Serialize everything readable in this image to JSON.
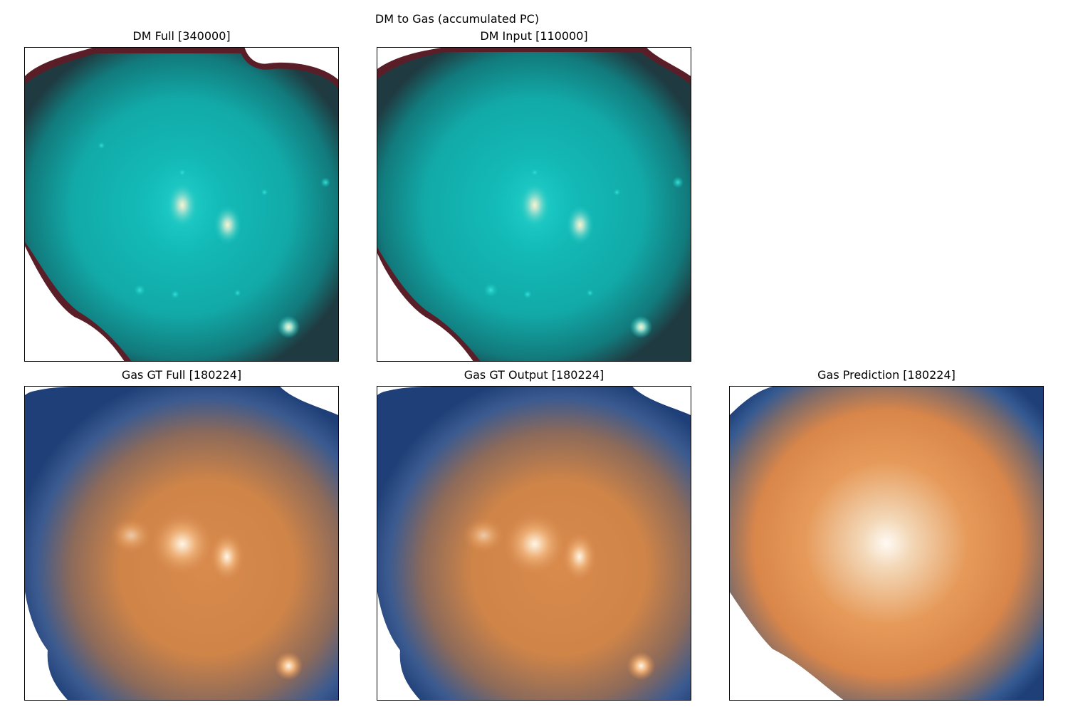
{
  "figure": {
    "suptitle": "DM to Gas (accumulated PC)",
    "panels": [
      {
        "title": "DM Full [340000]",
        "colormap": "teal-maroon"
      },
      {
        "title": "DM Input [110000]",
        "colormap": "teal-maroon"
      },
      {
        "title": "Gas GT Full [180224]",
        "colormap": "blue-orange"
      },
      {
        "title": "Gas GT Output [180224]",
        "colormap": "blue-orange"
      },
      {
        "title": "Gas Prediction [180224]",
        "colormap": "blue-orange"
      }
    ]
  },
  "colors": {
    "dm_edge": "#5a1e28",
    "dm_body": "#1aa6a6",
    "dm_core": "#f3f0c8",
    "gas_edge": "#1f3f78",
    "gas_body": "#d4844a",
    "gas_core": "#ffffff"
  }
}
